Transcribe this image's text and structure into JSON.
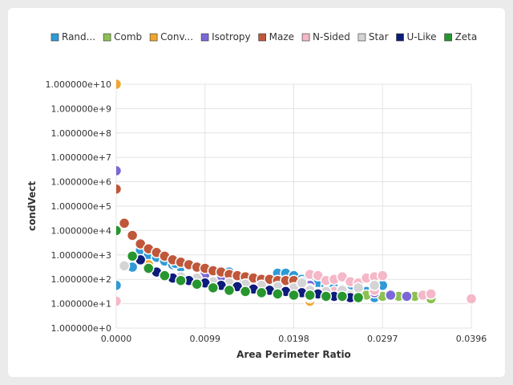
{
  "chart_data": {
    "type": "scatter",
    "xlabel": "Area Perimeter Ratio",
    "ylabel": "condVect",
    "xlim": [
      0,
      0.0396
    ],
    "ylim": [
      0,
      10
    ],
    "y_scale": "log10",
    "x_ticks": [
      "0.0000",
      "0.0099",
      "0.0198",
      "0.0297",
      "0.0396"
    ],
    "y_ticks": [
      "1.000000e+0",
      "1.000000e+1",
      "1.000000e+2",
      "1.000000e+3",
      "1.000000e+4",
      "1.000000e+5",
      "1.000000e+6",
      "1.000000e+7",
      "1.000000e+8",
      "1.000000e+9",
      "1.000000e+10"
    ],
    "grid": true,
    "legend_position": "top",
    "series": [
      {
        "name": "Rand...",
        "color": "#2f9ad6",
        "points": [
          [
            0.0,
            1.75
          ],
          [
            0.0,
            1.15
          ],
          [
            0.0018,
            2.5
          ],
          [
            0.0027,
            3.2
          ],
          [
            0.0036,
            3.0
          ],
          [
            0.0045,
            2.9
          ],
          [
            0.0054,
            2.75
          ],
          [
            0.0063,
            2.6
          ],
          [
            0.0072,
            2.5
          ],
          [
            0.0081,
            2.55
          ],
          [
            0.009,
            2.5
          ],
          [
            0.0099,
            2.45
          ],
          [
            0.0108,
            2.4
          ],
          [
            0.0117,
            2.35
          ],
          [
            0.0126,
            2.3
          ],
          [
            0.0135,
            2.1
          ],
          [
            0.0144,
            2.05
          ],
          [
            0.0153,
            1.95
          ],
          [
            0.0162,
            1.85
          ],
          [
            0.0171,
            1.95
          ],
          [
            0.018,
            2.25
          ],
          [
            0.0189,
            2.25
          ],
          [
            0.0198,
            2.15
          ],
          [
            0.0207,
            2.0
          ],
          [
            0.0216,
            1.95
          ],
          [
            0.0225,
            1.85
          ],
          [
            0.0234,
            1.75
          ],
          [
            0.0243,
            1.65
          ],
          [
            0.0252,
            1.55
          ],
          [
            0.0261,
            1.55
          ],
          [
            0.027,
            1.65
          ],
          [
            0.0279,
            1.5
          ],
          [
            0.0288,
            1.25
          ],
          [
            0.0297,
            1.75
          ],
          [
            0.0066,
            2.65
          ],
          [
            0.0117,
            2.2
          ],
          [
            0.0162,
            1.7
          ],
          [
            0.0208,
            1.9
          ],
          [
            0.0257,
            1.4
          ]
        ]
      },
      {
        "name": "Comb",
        "color": "#8cc152",
        "points": [
          [
            0.0099,
            1.95
          ],
          [
            0.0117,
            1.85
          ],
          [
            0.0135,
            1.7
          ],
          [
            0.0153,
            1.65
          ],
          [
            0.0171,
            1.6
          ],
          [
            0.0189,
            1.55
          ],
          [
            0.0207,
            1.5
          ],
          [
            0.0225,
            1.45
          ],
          [
            0.0243,
            1.4
          ],
          [
            0.0261,
            1.35
          ],
          [
            0.0279,
            1.35
          ],
          [
            0.0297,
            1.3
          ],
          [
            0.0315,
            1.3
          ],
          [
            0.0333,
            1.3
          ],
          [
            0.0351,
            1.2
          ]
        ]
      },
      {
        "name": "Conv...",
        "color": "#f0a530",
        "points": [
          [
            0.0,
            10.0
          ],
          [
            0.0036,
            2.6
          ],
          [
            0.0054,
            2.2
          ],
          [
            0.0072,
            2.1
          ],
          [
            0.009,
            2.0
          ],
          [
            0.0126,
            1.8
          ],
          [
            0.0153,
            1.6
          ],
          [
            0.0171,
            1.7
          ],
          [
            0.0198,
            1.45
          ],
          [
            0.0216,
            1.1
          ]
        ]
      },
      {
        "name": "Isotropy",
        "color": "#7b68d8",
        "points": [
          [
            0.0,
            6.45
          ],
          [
            0.0099,
            2.2
          ],
          [
            0.0117,
            2.0
          ],
          [
            0.0135,
            1.9
          ],
          [
            0.0153,
            1.8
          ],
          [
            0.0171,
            1.65
          ],
          [
            0.0189,
            1.55
          ],
          [
            0.0207,
            1.5
          ],
          [
            0.0216,
            1.75
          ],
          [
            0.0225,
            1.4
          ],
          [
            0.0243,
            1.3
          ],
          [
            0.0252,
            1.6
          ],
          [
            0.0261,
            1.25
          ],
          [
            0.027,
            1.2
          ],
          [
            0.0288,
            1.45
          ],
          [
            0.0306,
            1.35
          ],
          [
            0.0324,
            1.3
          ],
          [
            0.0216,
            1.25
          ]
        ]
      },
      {
        "name": "Maze",
        "color": "#c0573a",
        "points": [
          [
            0.0,
            5.7
          ],
          [
            0.0009,
            4.3
          ],
          [
            0.0018,
            3.8
          ],
          [
            0.0027,
            3.45
          ],
          [
            0.0036,
            3.25
          ],
          [
            0.0045,
            3.1
          ],
          [
            0.0054,
            2.95
          ],
          [
            0.0063,
            2.8
          ],
          [
            0.0072,
            2.7
          ],
          [
            0.0081,
            2.6
          ],
          [
            0.009,
            2.5
          ],
          [
            0.0099,
            2.45
          ],
          [
            0.0108,
            2.35
          ],
          [
            0.0117,
            2.3
          ],
          [
            0.0126,
            2.2
          ],
          [
            0.0135,
            2.15
          ],
          [
            0.0144,
            2.1
          ],
          [
            0.0153,
            2.05
          ],
          [
            0.0162,
            2.0
          ],
          [
            0.0171,
            2.0
          ],
          [
            0.018,
            1.95
          ],
          [
            0.0189,
            1.95
          ],
          [
            0.0198,
            1.95
          ]
        ]
      },
      {
        "name": "N-Sided",
        "color": "#f4b8c8",
        "points": [
          [
            0.0,
            1.1
          ],
          [
            0.0216,
            2.2
          ],
          [
            0.0225,
            2.15
          ],
          [
            0.0234,
            1.95
          ],
          [
            0.0243,
            2.0
          ],
          [
            0.0252,
            2.1
          ],
          [
            0.0261,
            1.9
          ],
          [
            0.027,
            1.85
          ],
          [
            0.0279,
            2.05
          ],
          [
            0.0288,
            2.1
          ],
          [
            0.0297,
            2.15
          ],
          [
            0.0216,
            1.3
          ],
          [
            0.0234,
            1.2
          ],
          [
            0.0252,
            1.25
          ],
          [
            0.0288,
            1.55
          ],
          [
            0.0342,
            1.35
          ],
          [
            0.0351,
            1.4
          ],
          [
            0.0396,
            1.2
          ],
          [
            0.0216,
            1.6
          ],
          [
            0.0243,
            1.5
          ]
        ]
      },
      {
        "name": "Star",
        "color": "#d4d4d4",
        "points": [
          [
            0.0009,
            2.55
          ],
          [
            0.0036,
            2.4
          ],
          [
            0.0072,
            2.1
          ],
          [
            0.009,
            2.05
          ],
          [
            0.0108,
            1.9
          ],
          [
            0.0126,
            1.85
          ],
          [
            0.0144,
            1.8
          ],
          [
            0.0162,
            1.75
          ],
          [
            0.018,
            1.7
          ],
          [
            0.0198,
            1.65
          ],
          [
            0.0216,
            1.55
          ],
          [
            0.0234,
            1.5
          ],
          [
            0.0252,
            1.55
          ],
          [
            0.027,
            1.65
          ],
          [
            0.0288,
            1.75
          ],
          [
            0.0234,
            1.25
          ],
          [
            0.0261,
            1.35
          ],
          [
            0.0207,
            1.85
          ]
        ]
      },
      {
        "name": "U-Like",
        "color": "#0d1b7a",
        "points": [
          [
            0.0027,
            2.8
          ],
          [
            0.0045,
            2.3
          ],
          [
            0.0063,
            2.05
          ],
          [
            0.0081,
            1.95
          ],
          [
            0.0099,
            1.85
          ],
          [
            0.0117,
            1.75
          ],
          [
            0.0135,
            1.7
          ],
          [
            0.0153,
            1.6
          ],
          [
            0.0171,
            1.55
          ],
          [
            0.0189,
            1.5
          ],
          [
            0.0207,
            1.45
          ],
          [
            0.0225,
            1.4
          ],
          [
            0.0243,
            1.3
          ],
          [
            0.0261,
            1.25
          ]
        ]
      },
      {
        "name": "Zeta",
        "color": "#27962f",
        "points": [
          [
            0.0,
            4.0
          ],
          [
            0.0018,
            2.95
          ],
          [
            0.0036,
            2.45
          ],
          [
            0.0054,
            2.15
          ],
          [
            0.0072,
            1.95
          ],
          [
            0.009,
            1.8
          ],
          [
            0.0108,
            1.65
          ],
          [
            0.0126,
            1.55
          ],
          [
            0.0144,
            1.5
          ],
          [
            0.0162,
            1.45
          ],
          [
            0.018,
            1.4
          ],
          [
            0.0198,
            1.35
          ],
          [
            0.0216,
            1.35
          ],
          [
            0.0234,
            1.3
          ],
          [
            0.0252,
            1.3
          ],
          [
            0.027,
            1.25
          ]
        ]
      }
    ]
  }
}
